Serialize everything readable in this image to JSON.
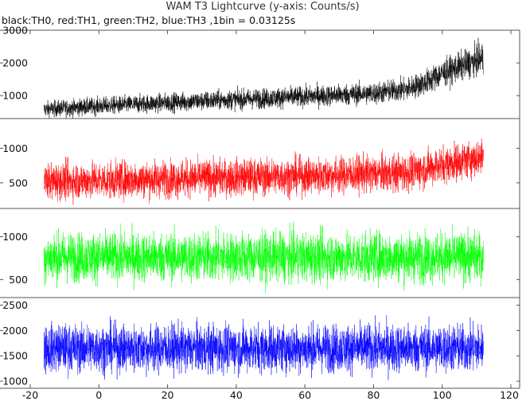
{
  "chart_data": {
    "type": "line",
    "title": "WAM T3 Lightcurve (y-axis: Counts/s)",
    "subtitle": "black:TH0, red:TH1, green:TH2, blue:TH3 ,1bin = 0.03125s",
    "x_axis": {
      "range": [
        -20,
        120
      ],
      "ticks": [
        -20,
        0,
        20,
        40,
        60,
        80,
        100,
        120
      ],
      "data_range": [
        -16,
        112
      ]
    },
    "panels": [
      {
        "name": "TH0",
        "color": "#000000",
        "ylim": [
          300,
          3000
        ],
        "yticks": [
          1000,
          2000,
          3000
        ],
        "trend": [
          [
            -16,
            580
          ],
          [
            0,
            680
          ],
          [
            20,
            790
          ],
          [
            40,
            880
          ],
          [
            60,
            970
          ],
          [
            80,
            1070
          ],
          [
            90,
            1200
          ],
          [
            95,
            1400
          ],
          [
            100,
            1680
          ],
          [
            105,
            1880
          ],
          [
            112,
            2150
          ]
        ],
        "noise_sd": 140
      },
      {
        "name": "TH1",
        "color": "#ff0000",
        "ylim": [
          130,
          1430
        ],
        "yticks": [
          500,
          1000
        ],
        "trend": [
          [
            -16,
            520
          ],
          [
            20,
            560
          ],
          [
            60,
            600
          ],
          [
            90,
            650
          ],
          [
            100,
            760
          ],
          [
            112,
            880
          ]
        ],
        "noise_sd": 130
      },
      {
        "name": "TH2",
        "color": "#00ff00",
        "ylim": [
          290,
          1330
        ],
        "yticks": [
          500,
          1000
        ],
        "trend": [
          [
            -16,
            760
          ],
          [
            112,
            760
          ]
        ],
        "noise_sd": 140
      },
      {
        "name": "TH3",
        "color": "#0000ff",
        "ylim": [
          860,
          2650
        ],
        "yticks": [
          1000,
          1500,
          2000,
          2500
        ],
        "trend": [
          [
            -16,
            1650
          ],
          [
            112,
            1650
          ]
        ],
        "noise_sd": 230
      }
    ]
  }
}
